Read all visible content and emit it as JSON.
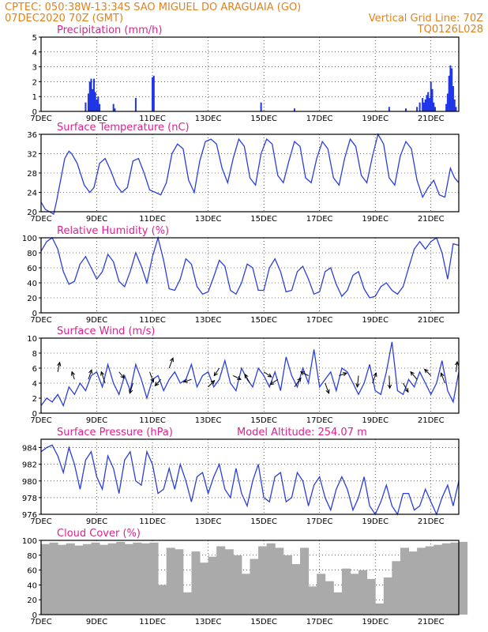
{
  "header": {
    "line1_left": "CPTEC:   050:38W-13:34S  SAO MIGUEL DO ARAGUAIA (GO)",
    "line2_left": "07DEC2020 70Z (GMT)",
    "line2_right": "Vertical Grid Line: 70Z",
    "line3_right": "TQ0126L028"
  },
  "x_ticks": [
    "7DEC",
    "9DEC",
    "11DEC",
    "13DEC",
    "15DEC",
    "17DEC",
    "19DEC",
    "21DEC"
  ],
  "x_tick_days": [
    7,
    9,
    11,
    13,
    15,
    17,
    19,
    21
  ],
  "x_start_day": 7,
  "x_end_day": 22,
  "colors": {
    "line": "#2a3fdc",
    "bar": "#1f35e6",
    "cloud": "#aaaaaa",
    "header": "#e0821e",
    "title": "#e0208f"
  },
  "chart_data": [
    {
      "type": "bar",
      "title": "Precipitation (mm/h)",
      "ylim": [
        0,
        5
      ],
      "yticks": [
        0,
        1,
        2,
        3,
        4,
        5
      ],
      "x": [
        8.6,
        8.7,
        8.75,
        8.8,
        8.85,
        8.9,
        8.95,
        9.0,
        9.05,
        9.1,
        9.6,
        9.65,
        10.4,
        11.0,
        11.05,
        14.9,
        16.1,
        19.5,
        20.1,
        20.5,
        20.6,
        20.7,
        20.75,
        20.8,
        20.85,
        20.9,
        20.95,
        21.0,
        21.05,
        21.1,
        21.15,
        21.55,
        21.6,
        21.65,
        21.7,
        21.75,
        21.8,
        21.85,
        21.9
      ],
      "values": [
        0.6,
        1.2,
        2.0,
        2.2,
        1.5,
        2.2,
        1.3,
        0.8,
        1.0,
        0.5,
        0.5,
        0.2,
        0.9,
        2.3,
        2.4,
        0.6,
        0.2,
        0.3,
        0.2,
        0.3,
        0.6,
        0.9,
        0.6,
        0.8,
        1.1,
        1.3,
        0.9,
        2.0,
        1.5,
        0.6,
        0.3,
        0.5,
        1.2,
        2.4,
        3.1,
        2.9,
        1.7,
        0.8,
        0.3
      ]
    },
    {
      "type": "line",
      "title": "Surface Temperature (nC)",
      "ylim": [
        20,
        36
      ],
      "yticks": [
        20,
        24,
        28,
        32,
        36
      ],
      "x": [
        7.0,
        7.15,
        7.3,
        7.45,
        7.55,
        7.7,
        7.85,
        8.0,
        8.1,
        8.3,
        8.55,
        8.75,
        8.9,
        9.1,
        9.3,
        9.5,
        9.7,
        9.9,
        10.1,
        10.3,
        10.5,
        10.7,
        10.9,
        11.1,
        11.3,
        11.5,
        11.7,
        11.9,
        12.1,
        12.3,
        12.5,
        12.7,
        12.9,
        13.1,
        13.3,
        13.5,
        13.7,
        13.9,
        14.1,
        14.3,
        14.5,
        14.7,
        14.9,
        15.1,
        15.3,
        15.5,
        15.7,
        15.9,
        16.1,
        16.3,
        16.5,
        16.7,
        16.9,
        17.1,
        17.3,
        17.5,
        17.7,
        17.9,
        18.1,
        18.3,
        18.5,
        18.7,
        18.9,
        19.1,
        19.3,
        19.5,
        19.7,
        19.9,
        20.1,
        20.3,
        20.5,
        20.7,
        20.9,
        21.1,
        21.3,
        21.5,
        21.7,
        21.85,
        22.0
      ],
      "values": [
        22.0,
        20.5,
        20.0,
        19.5,
        22.0,
        26.5,
        31.0,
        32.5,
        32.0,
        30.0,
        25.5,
        24.0,
        25.0,
        30.0,
        31.0,
        28.5,
        25.5,
        24.0,
        25.0,
        30.5,
        31.0,
        28.0,
        24.5,
        24.0,
        23.5,
        26.0,
        32.0,
        34.0,
        33.0,
        26.5,
        24.0,
        30.5,
        34.5,
        35.0,
        34.0,
        29.0,
        26.0,
        31.0,
        35.0,
        33.5,
        27.0,
        25.5,
        32.0,
        35.0,
        34.0,
        27.5,
        26.0,
        30.5,
        34.5,
        33.5,
        27.0,
        26.0,
        31.0,
        34.5,
        33.0,
        27.0,
        25.5,
        31.0,
        35.0,
        33.5,
        27.5,
        26.0,
        31.5,
        36.0,
        34.0,
        27.0,
        25.5,
        31.5,
        34.5,
        33.0,
        26.5,
        23.0,
        25.0,
        26.5,
        23.5,
        23.0,
        29.0,
        27.0,
        26.0
      ]
    },
    {
      "type": "line",
      "title": "Relative Humidity (%)",
      "ylim": [
        0,
        100
      ],
      "yticks": [
        0,
        20,
        40,
        60,
        80,
        100
      ],
      "x": [
        7.0,
        7.2,
        7.4,
        7.6,
        7.8,
        8.0,
        8.2,
        8.4,
        8.6,
        8.8,
        9.0,
        9.2,
        9.4,
        9.6,
        9.8,
        10.0,
        10.2,
        10.4,
        10.6,
        10.8,
        11.0,
        11.2,
        11.4,
        11.6,
        11.8,
        12.0,
        12.2,
        12.4,
        12.6,
        12.8,
        13.0,
        13.2,
        13.4,
        13.6,
        13.8,
        14.0,
        14.2,
        14.4,
        14.6,
        14.8,
        15.0,
        15.2,
        15.4,
        15.6,
        15.8,
        16.0,
        16.2,
        16.4,
        16.6,
        16.8,
        17.0,
        17.2,
        17.4,
        17.6,
        17.8,
        18.0,
        18.2,
        18.4,
        18.6,
        18.8,
        19.0,
        19.2,
        19.4,
        19.6,
        19.8,
        20.0,
        20.2,
        20.4,
        20.6,
        20.8,
        21.0,
        21.2,
        21.4,
        21.6,
        21.8,
        22.0
      ],
      "values": [
        82,
        95,
        100,
        85,
        55,
        38,
        42,
        65,
        75,
        60,
        45,
        55,
        78,
        68,
        42,
        35,
        55,
        80,
        62,
        40,
        75,
        100,
        70,
        32,
        30,
        45,
        72,
        65,
        35,
        25,
        28,
        48,
        70,
        62,
        30,
        25,
        40,
        65,
        60,
        30,
        30,
        60,
        72,
        55,
        28,
        30,
        55,
        62,
        45,
        25,
        28,
        55,
        60,
        38,
        22,
        30,
        50,
        55,
        32,
        20,
        22,
        35,
        40,
        30,
        25,
        35,
        60,
        85,
        95,
        85,
        95,
        100,
        80,
        45,
        92,
        90
      ]
    },
    {
      "type": "line",
      "title": "Surface Wind (m/s)",
      "ylim": [
        0,
        10
      ],
      "yticks": [
        0,
        2,
        4,
        6,
        8,
        10
      ],
      "x": [
        7.0,
        7.2,
        7.4,
        7.6,
        7.8,
        8.0,
        8.2,
        8.4,
        8.6,
        8.8,
        9.0,
        9.2,
        9.4,
        9.6,
        9.8,
        10.0,
        10.2,
        10.4,
        10.6,
        10.8,
        11.0,
        11.2,
        11.4,
        11.6,
        11.8,
        12.0,
        12.2,
        12.4,
        12.6,
        12.8,
        13.0,
        13.2,
        13.4,
        13.6,
        13.8,
        14.0,
        14.2,
        14.4,
        14.6,
        14.8,
        15.0,
        15.2,
        15.4,
        15.6,
        15.8,
        16.0,
        16.2,
        16.4,
        16.6,
        16.8,
        17.0,
        17.2,
        17.4,
        17.6,
        17.8,
        18.0,
        18.2,
        18.4,
        18.6,
        18.8,
        19.0,
        19.2,
        19.4,
        19.6,
        19.8,
        20.0,
        20.2,
        20.4,
        20.6,
        20.8,
        21.0,
        21.2,
        21.4,
        21.6,
        21.8,
        22.0
      ],
      "values": [
        1.0,
        2.0,
        1.5,
        2.5,
        1.0,
        3.5,
        2.5,
        4.0,
        3.0,
        5.0,
        5.5,
        3.5,
        6.5,
        4.0,
        2.5,
        5.0,
        3.0,
        6.5,
        4.5,
        2.0,
        4.5,
        5.0,
        3.0,
        4.5,
        5.5,
        4.0,
        4.5,
        6.5,
        3.5,
        5.0,
        5.5,
        3.5,
        4.5,
        7.0,
        4.0,
        3.0,
        6.0,
        4.5,
        3.5,
        6.0,
        5.0,
        3.5,
        5.5,
        3.0,
        7.5,
        5.0,
        3.5,
        6.0,
        4.0,
        8.5,
        3.5,
        4.5,
        5.5,
        3.0,
        6.0,
        5.5,
        4.0,
        2.5,
        4.0,
        6.5,
        3.0,
        2.5,
        5.5,
        9.5,
        3.0,
        2.5,
        4.5,
        3.5,
        5.5,
        4.0,
        2.5,
        4.0,
        7.0,
        3.0,
        1.5,
        5.5
      ],
      "arrows": [
        {
          "x": 7.6,
          "y": 5.5,
          "dx": 0.3,
          "dy": 1.5
        },
        {
          "x": 8.2,
          "y": 4.5,
          "dx": -0.4,
          "dy": 1.2
        },
        {
          "x": 8.7,
          "y": 4.5,
          "dx": 0.5,
          "dy": 1.5
        },
        {
          "x": 9.3,
          "y": 4.0,
          "dx": -0.6,
          "dy": 1.8
        },
        {
          "x": 9.8,
          "y": 5.5,
          "dx": 0.8,
          "dy": -1.0
        },
        {
          "x": 10.3,
          "y": 4.0,
          "dx": -0.5,
          "dy": -1.6
        },
        {
          "x": 10.9,
          "y": 5.5,
          "dx": 0.6,
          "dy": -1.6
        },
        {
          "x": 11.3,
          "y": 4.5,
          "dx": -0.9,
          "dy": -1.0
        },
        {
          "x": 11.6,
          "y": 6.0,
          "dx": 0.6,
          "dy": 1.6
        },
        {
          "x": 12.4,
          "y": 4.5,
          "dx": -1.2,
          "dy": -0.4
        },
        {
          "x": 13.0,
          "y": 3.5,
          "dx": 1.0,
          "dy": 1.0
        },
        {
          "x": 13.4,
          "y": 6.0,
          "dx": -0.8,
          "dy": -1.2
        },
        {
          "x": 13.9,
          "y": 5.0,
          "dx": 1.2,
          "dy": -0.6
        },
        {
          "x": 14.5,
          "y": 4.0,
          "dx": -0.8,
          "dy": 1.4
        },
        {
          "x": 15.0,
          "y": 5.5,
          "dx": 1.2,
          "dy": -0.8
        },
        {
          "x": 15.5,
          "y": 4.5,
          "dx": -1.2,
          "dy": -0.8
        },
        {
          "x": 16.1,
          "y": 3.5,
          "dx": 1.0,
          "dy": 1.4
        },
        {
          "x": 16.6,
          "y": 5.0,
          "dx": -1.2,
          "dy": 0.6
        },
        {
          "x": 17.2,
          "y": 4.0,
          "dx": 0.6,
          "dy": -1.6
        },
        {
          "x": 17.7,
          "y": 5.0,
          "dx": 1.2,
          "dy": 0.4
        },
        {
          "x": 18.4,
          "y": 5.0,
          "dx": -0.2,
          "dy": -1.8
        },
        {
          "x": 18.9,
          "y": 4.0,
          "dx": 0.6,
          "dy": 1.6
        },
        {
          "x": 19.5,
          "y": 5.0,
          "dx": 0.1,
          "dy": -2.0
        },
        {
          "x": 20.0,
          "y": 4.0,
          "dx": 0.8,
          "dy": -1.4
        },
        {
          "x": 20.5,
          "y": 4.5,
          "dx": -1.0,
          "dy": 1.2
        },
        {
          "x": 21.0,
          "y": 5.0,
          "dx": -1.0,
          "dy": 1.0
        },
        {
          "x": 21.5,
          "y": 4.0,
          "dx": -0.6,
          "dy": 1.6
        },
        {
          "x": 21.9,
          "y": 5.5,
          "dx": 0.2,
          "dy": 1.6
        }
      ]
    },
    {
      "type": "line",
      "title": "Surface Pressure (hPa)",
      "annotation": "Model Altitude: 254.07 m",
      "ylim": [
        976,
        985
      ],
      "yticks": [
        976,
        978,
        980,
        982,
        984
      ],
      "x": [
        7.0,
        7.2,
        7.4,
        7.6,
        7.8,
        8.0,
        8.2,
        8.4,
        8.6,
        8.8,
        9.0,
        9.2,
        9.4,
        9.6,
        9.8,
        10.0,
        10.2,
        10.4,
        10.6,
        10.8,
        11.0,
        11.2,
        11.4,
        11.6,
        11.8,
        12.0,
        12.2,
        12.4,
        12.6,
        12.8,
        13.0,
        13.2,
        13.4,
        13.6,
        13.8,
        14.0,
        14.2,
        14.4,
        14.6,
        14.8,
        15.0,
        15.2,
        15.4,
        15.6,
        15.8,
        16.0,
        16.2,
        16.4,
        16.6,
        16.8,
        17.0,
        17.2,
        17.4,
        17.6,
        17.8,
        18.0,
        18.2,
        18.4,
        18.6,
        18.8,
        19.0,
        19.2,
        19.4,
        19.6,
        19.8,
        20.0,
        20.2,
        20.4,
        20.6,
        20.8,
        21.0,
        21.2,
        21.4,
        21.6,
        21.8,
        22.0
      ],
      "values": [
        983.5,
        984.0,
        984.3,
        983.0,
        981.0,
        984.0,
        982.0,
        979.0,
        982.5,
        983.5,
        980.5,
        979.0,
        983.0,
        981.5,
        978.5,
        982.5,
        983.5,
        980.0,
        979.5,
        983.5,
        982.0,
        978.5,
        979.0,
        981.5,
        979.0,
        982.0,
        980.0,
        977.5,
        980.5,
        981.0,
        978.5,
        980.5,
        982.0,
        979.0,
        978.0,
        981.5,
        978.5,
        977.0,
        980.0,
        982.0,
        978.0,
        977.5,
        980.5,
        981.0,
        977.5,
        978.0,
        981.0,
        980.0,
        977.0,
        979.5,
        980.5,
        978.0,
        976.5,
        979.0,
        980.5,
        979.0,
        976.5,
        978.0,
        980.5,
        977.0,
        976.0,
        977.5,
        979.5,
        977.0,
        976.0,
        978.5,
        978.5,
        976.5,
        977.0,
        979.0,
        977.5,
        976.0,
        978.0,
        979.5,
        977.0,
        980.0
      ]
    },
    {
      "type": "area",
      "title": "Cloud Cover (%)",
      "ylim": [
        0,
        100
      ],
      "yticks": [
        0,
        20,
        40,
        60,
        80,
        100
      ],
      "x": [
        7.0,
        7.3,
        7.6,
        7.9,
        8.2,
        8.5,
        8.8,
        9.1,
        9.4,
        9.7,
        10.0,
        10.3,
        10.6,
        10.9,
        11.2,
        11.5,
        11.8,
        12.1,
        12.4,
        12.7,
        13.0,
        13.3,
        13.6,
        13.9,
        14.2,
        14.5,
        14.8,
        15.1,
        15.4,
        15.7,
        16.0,
        16.3,
        16.6,
        16.9,
        17.2,
        17.5,
        17.8,
        18.1,
        18.4,
        18.7,
        19.0,
        19.3,
        19.6,
        19.9,
        20.2,
        20.5,
        20.8,
        21.1,
        21.4,
        21.7,
        22.0
      ],
      "values": [
        95,
        97,
        94,
        96,
        93,
        95,
        97,
        94,
        96,
        98,
        95,
        97,
        96,
        97,
        40,
        90,
        88,
        30,
        85,
        70,
        78,
        92,
        88,
        80,
        55,
        75,
        92,
        96,
        90,
        80,
        68,
        90,
        38,
        55,
        45,
        30,
        62,
        55,
        60,
        48,
        15,
        50,
        72,
        90,
        85,
        90,
        92,
        94,
        96,
        97,
        98
      ]
    }
  ]
}
